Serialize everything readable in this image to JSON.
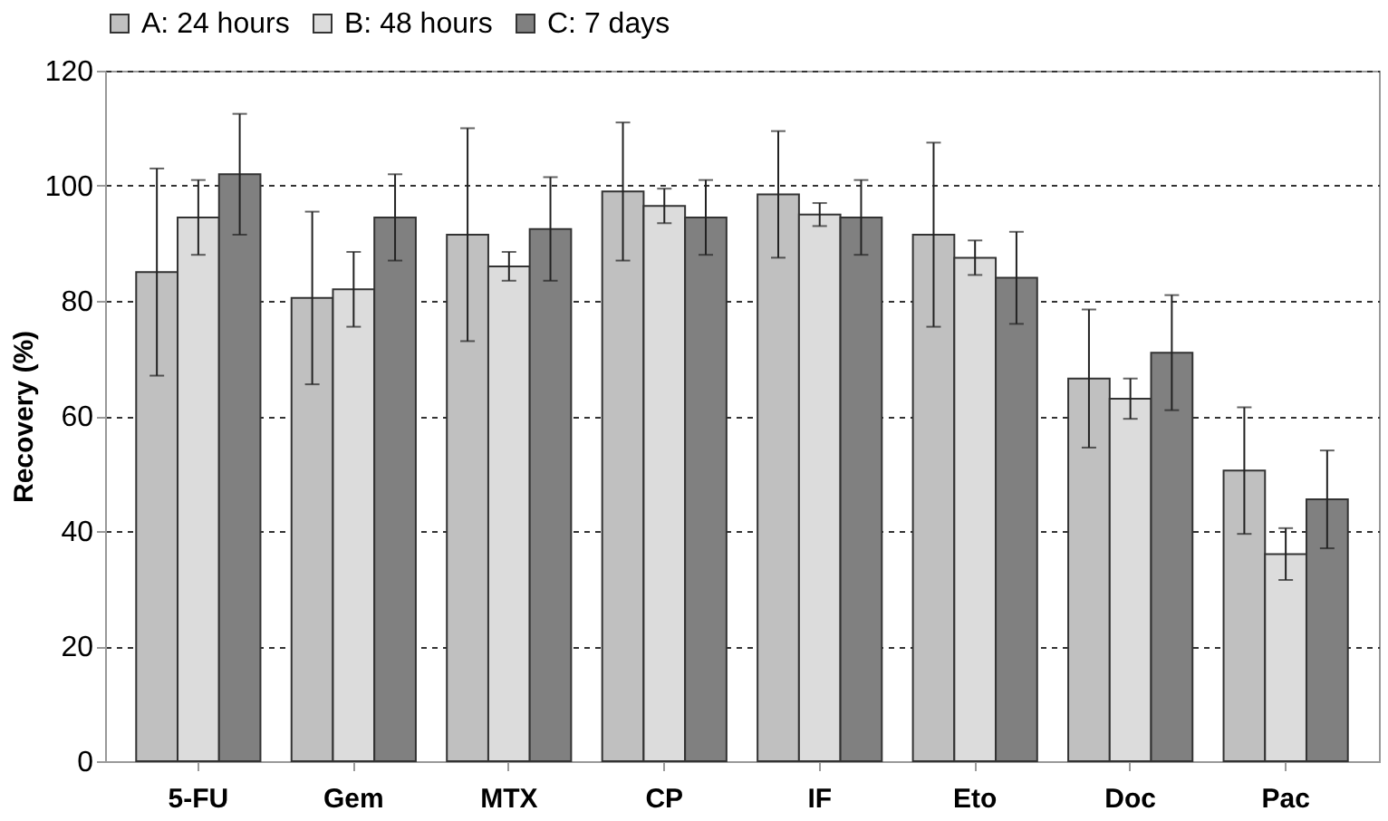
{
  "chart_data": {
    "type": "bar",
    "ylabel": "Recovery (%)",
    "categories": [
      "5-FU",
      "Gem",
      "MTX",
      "CP",
      "IF",
      "Eto",
      "Doc",
      "Pac"
    ],
    "series": [
      {
        "name": "A: 24 hours",
        "color": "#c0c0c0",
        "values": [
          85,
          80.5,
          91.5,
          99,
          98.5,
          91.5,
          66.5,
          50.5
        ],
        "errors": [
          18,
          15,
          18.5,
          12,
          11,
          16,
          12,
          11
        ]
      },
      {
        "name": "B: 48 hours",
        "color": "#dcdcdc",
        "values": [
          94.5,
          82,
          86,
          96.5,
          95,
          87.5,
          63,
          36
        ],
        "errors": [
          6.5,
          6.5,
          2.5,
          3,
          2,
          3,
          3.5,
          4.5
        ]
      },
      {
        "name": "C: 7 days",
        "color": "#808080",
        "values": [
          102,
          94.5,
          92.5,
          94.5,
          94.5,
          84,
          71,
          45.5
        ],
        "errors": [
          10.5,
          7.5,
          9,
          6.5,
          6.5,
          8,
          10,
          8.5
        ]
      }
    ],
    "ylim": [
      0,
      120
    ],
    "yticks": [
      0,
      20,
      40,
      60,
      80,
      100,
      120
    ],
    "grid": "y",
    "legend": "top"
  }
}
